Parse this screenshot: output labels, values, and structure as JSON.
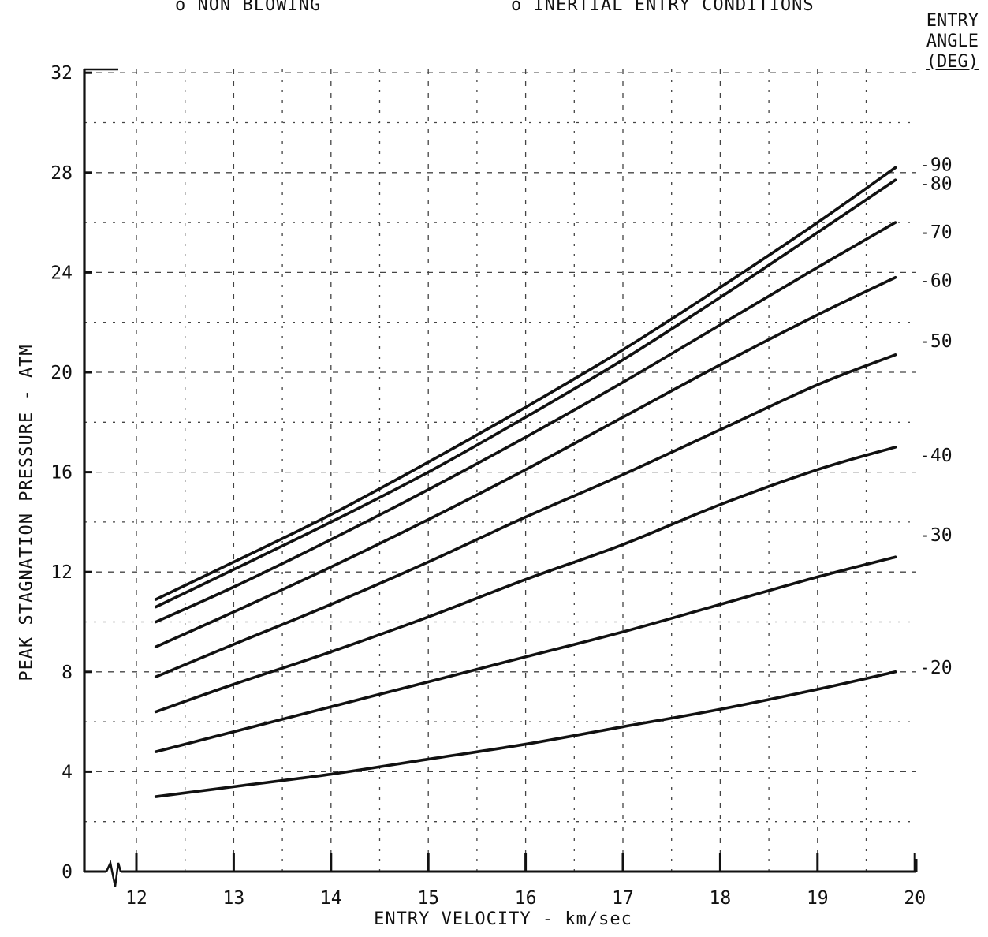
{
  "header": {
    "note_left": "o  NON BLOWING",
    "note_right": "o  INERTIAL ENTRY CONDITIONS",
    "angle_title_1": "ENTRY",
    "angle_title_2": "ANGLE",
    "angle_title_3": "(DEG)"
  },
  "chart_data": {
    "type": "line",
    "title": "",
    "xlabel": "ENTRY VELOCITY - km/sec",
    "ylabel": "PEAK STAGNATION PRESSURE - ATM",
    "xlim": [
      11.5,
      20
    ],
    "ylim": [
      0,
      32
    ],
    "x_ticks": [
      12,
      13,
      14,
      15,
      16,
      17,
      18,
      19,
      20
    ],
    "y_ticks": [
      0,
      4,
      8,
      12,
      16,
      20,
      24,
      28,
      32
    ],
    "grid": true,
    "axis_break": true,
    "legend_title": "ENTRY ANGLE (DEG)",
    "x": [
      12.2,
      13,
      14,
      15,
      16,
      17,
      18,
      19,
      19.8
    ],
    "series": [
      {
        "name": "-90",
        "values": [
          10.9,
          12.4,
          14.3,
          16.4,
          18.6,
          20.9,
          23.4,
          26.0,
          28.2
        ]
      },
      {
        "name": "-80",
        "values": [
          10.6,
          12.1,
          14.0,
          16.0,
          18.2,
          20.5,
          23.0,
          25.6,
          27.7
        ]
      },
      {
        "name": "-70",
        "values": [
          10.0,
          11.4,
          13.3,
          15.3,
          17.4,
          19.6,
          21.9,
          24.2,
          26.0
        ]
      },
      {
        "name": "-60",
        "values": [
          9.0,
          10.4,
          12.2,
          14.1,
          16.1,
          18.2,
          20.3,
          22.3,
          23.8
        ]
      },
      {
        "name": "-50",
        "values": [
          7.8,
          9.1,
          10.7,
          12.4,
          14.2,
          15.9,
          17.7,
          19.5,
          20.7
        ]
      },
      {
        "name": "-40",
        "values": [
          6.4,
          7.5,
          8.8,
          10.2,
          11.7,
          13.1,
          14.7,
          16.1,
          17.0
        ]
      },
      {
        "name": "-30",
        "values": [
          4.8,
          5.6,
          6.6,
          7.6,
          8.6,
          9.6,
          10.7,
          11.8,
          12.6
        ]
      },
      {
        "name": "-20",
        "values": [
          3.0,
          3.4,
          3.9,
          4.5,
          5.1,
          5.8,
          6.5,
          7.3,
          8.0
        ]
      }
    ]
  }
}
